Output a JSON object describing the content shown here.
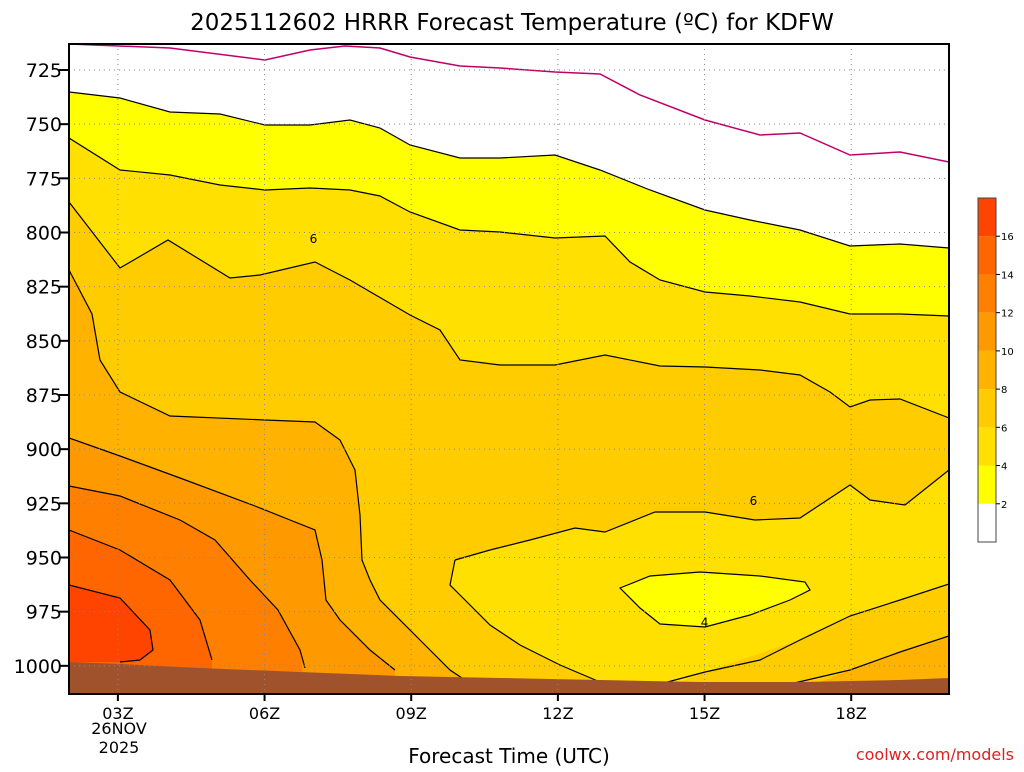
{
  "chart_data": {
    "type": "contour",
    "title": "2025112602 HRRR Forecast Temperature (ºC) for KDFW",
    "xlabel": "Forecast Time (UTC)",
    "credit": "coolwx.com/models",
    "x_ticks": [
      {
        "hour": 3,
        "label": "03Z"
      },
      {
        "hour": 6,
        "label": "06Z"
      },
      {
        "hour": 9,
        "label": "09Z"
      },
      {
        "hour": 12,
        "label": "12Z"
      },
      {
        "hour": 15,
        "label": "15Z"
      },
      {
        "hour": 18,
        "label": "18Z"
      }
    ],
    "date_label": [
      "26NOV",
      "2025"
    ],
    "xlim": [
      2,
      20
    ],
    "y_ticks": [
      725,
      750,
      775,
      800,
      825,
      850,
      875,
      900,
      925,
      950,
      975,
      1000
    ],
    "ylim": [
      1013,
      713
    ],
    "colorbar": {
      "levels": [
        2,
        4,
        6,
        8,
        10,
        12,
        14,
        16
      ],
      "colors": [
        "#ffffff",
        "#ffff00",
        "#ffe000",
        "#ffcc00",
        "#ffb200",
        "#ff9900",
        "#ff7f00",
        "#ff6600",
        "#ff4400"
      ]
    },
    "contour_labels": [
      {
        "text": "6",
        "hour": 7,
        "pressure": 803
      },
      {
        "text": "6",
        "hour": 16,
        "pressure": 924
      },
      {
        "text": "4",
        "hour": 15,
        "pressure": 980
      }
    ],
    "zero_isotherm_color": "#c0006a",
    "ground_color": "#a0522d"
  }
}
